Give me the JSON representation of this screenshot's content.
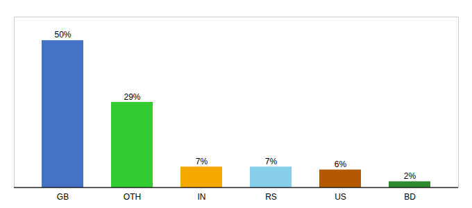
{
  "chart_data": {
    "type": "bar",
    "categories": [
      "GB",
      "OTH",
      "IN",
      "RS",
      "US",
      "BD"
    ],
    "values": [
      50,
      29,
      7,
      7,
      6,
      2
    ],
    "value_labels": [
      "50%",
      "29%",
      "7%",
      "7%",
      "6%",
      "2%"
    ],
    "colors": [
      "#4472c4",
      "#33cc33",
      "#f5a800",
      "#87ceeb",
      "#b35a00",
      "#2d8a2d"
    ],
    "ylim": [
      0,
      58
    ],
    "grid": false,
    "data_labels": true,
    "tick_labels": "x"
  }
}
